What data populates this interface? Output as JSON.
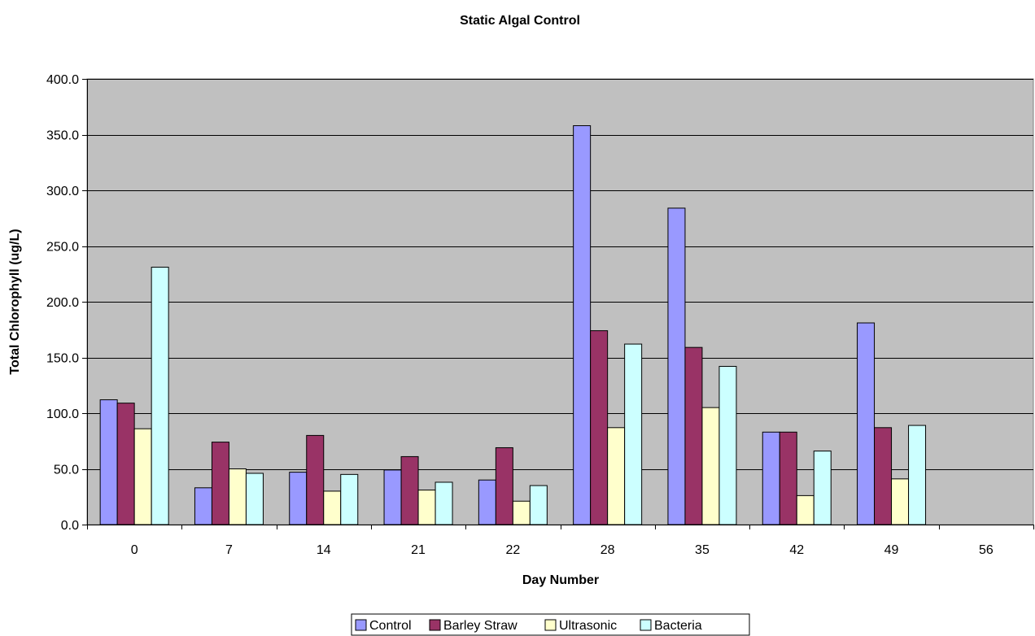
{
  "chart_data": {
    "type": "bar",
    "title": "Static Algal Control",
    "xlabel": "Day Number",
    "ylabel": "Total Chlorophyll (ug/L)",
    "categories": [
      "0",
      "7",
      "14",
      "21",
      "22",
      "28",
      "35",
      "42",
      "49",
      "56"
    ],
    "ylim": [
      0,
      400
    ],
    "yticks": [
      "0.0",
      "50.0",
      "100.0",
      "150.0",
      "200.0",
      "250.0",
      "300.0",
      "350.0",
      "400.0"
    ],
    "grid": true,
    "legend_position": "bottom",
    "plot_background": "#c0c0c0",
    "series": [
      {
        "name": "Control",
        "color": "#9999ff",
        "values": [
          112,
          33,
          47,
          49,
          40,
          358,
          284,
          83,
          181,
          null
        ]
      },
      {
        "name": "Barley Straw",
        "color": "#993366",
        "values": [
          109,
          74,
          80,
          61,
          69,
          174,
          159,
          83,
          87,
          null
        ]
      },
      {
        "name": "Ultrasonic",
        "color": "#ffffcc",
        "values": [
          86,
          50,
          30,
          31,
          21,
          87,
          105,
          26,
          41,
          null
        ]
      },
      {
        "name": "Bacteria",
        "color": "#ccffff",
        "values": [
          231,
          46,
          45,
          38,
          35,
          162,
          142,
          66,
          89,
          null
        ]
      }
    ]
  }
}
